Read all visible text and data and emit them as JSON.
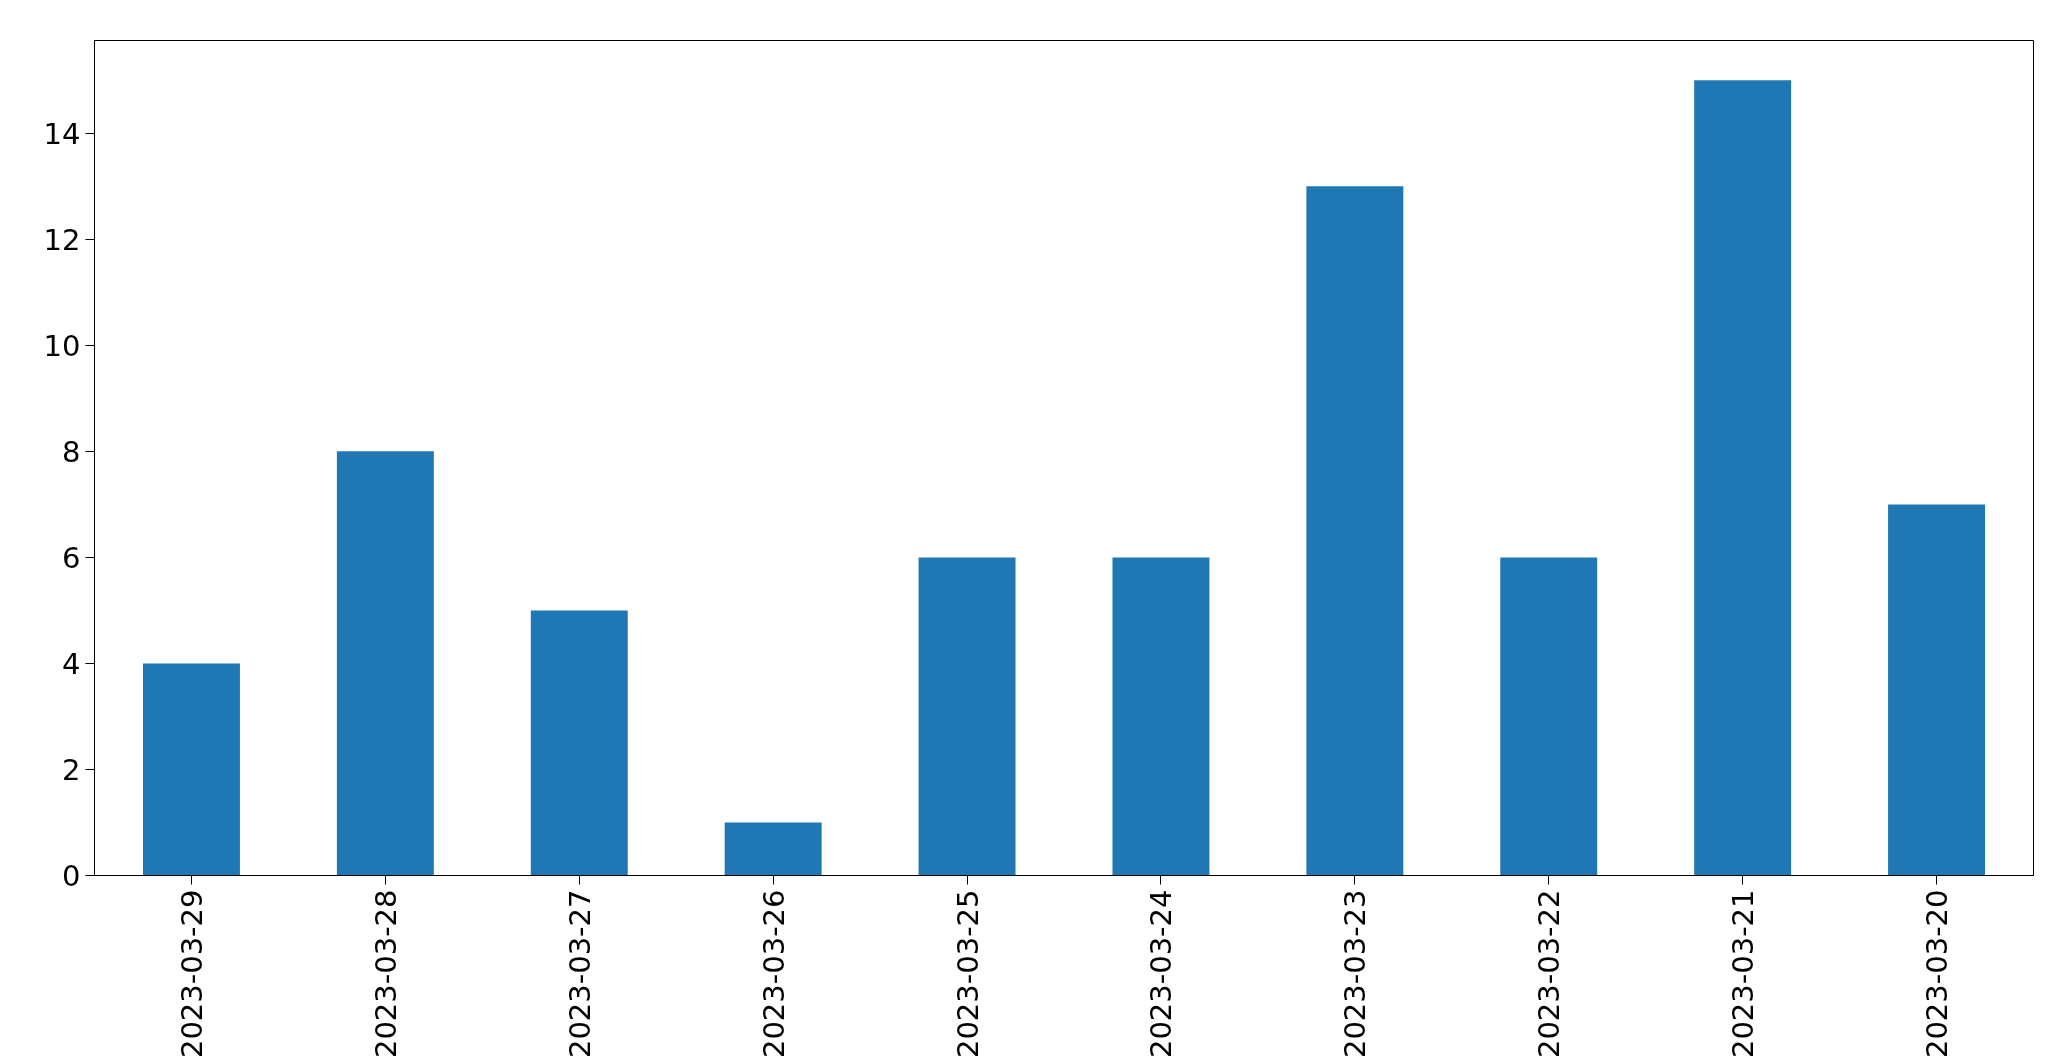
{
  "chart_data": {
    "type": "bar",
    "categories": [
      "2023-03-29",
      "2023-03-28",
      "2023-03-27",
      "2023-03-26",
      "2023-03-25",
      "2023-03-24",
      "2023-03-23",
      "2023-03-22",
      "2023-03-21",
      "2023-03-20"
    ],
    "values": [
      4,
      8,
      5,
      1,
      6,
      6,
      13,
      6,
      15,
      7
    ],
    "color": "#1f77b4",
    "ylim": [
      0,
      15.75
    ],
    "yticks": [
      0,
      2,
      4,
      6,
      8,
      10,
      12,
      14
    ]
  }
}
